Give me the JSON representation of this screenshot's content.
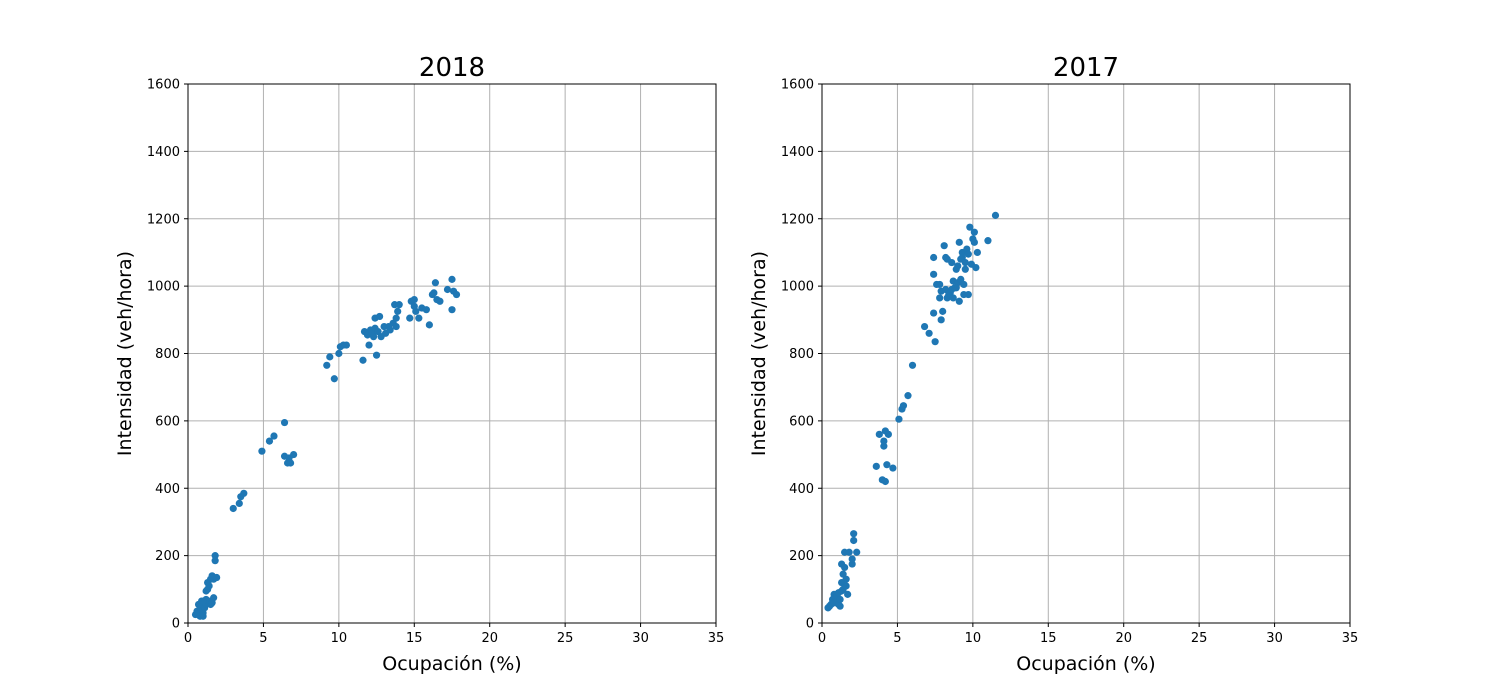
{
  "chart_data": [
    {
      "type": "scatter",
      "title": "2018",
      "xlabel": "Ocupación (%)",
      "ylabel": "Intensidad (veh/hora)",
      "xlim": [
        0,
        35
      ],
      "ylim": [
        0,
        1600
      ],
      "xticks": [
        0,
        5,
        10,
        15,
        20,
        25,
        30,
        35
      ],
      "yticks": [
        0,
        200,
        400,
        600,
        800,
        1000,
        1200,
        1400,
        1600
      ],
      "grid": true,
      "color": "#1f77b4",
      "points": [
        [
          0.5,
          25
        ],
        [
          0.6,
          35
        ],
        [
          0.7,
          30
        ],
        [
          0.8,
          20
        ],
        [
          0.8,
          45
        ],
        [
          0.9,
          65
        ],
        [
          0.9,
          40
        ],
        [
          1.0,
          50
        ],
        [
          1.0,
          30
        ],
        [
          1.0,
          20
        ],
        [
          1.1,
          60
        ],
        [
          1.1,
          45
        ],
        [
          1.2,
          70
        ],
        [
          1.2,
          55
        ],
        [
          1.2,
          95
        ],
        [
          1.3,
          100
        ],
        [
          1.3,
          120
        ],
        [
          1.4,
          110
        ],
        [
          1.4,
          65
        ],
        [
          1.5,
          130
        ],
        [
          1.5,
          55
        ],
        [
          1.6,
          60
        ],
        [
          1.6,
          140
        ],
        [
          1.7,
          130
        ],
        [
          1.7,
          75
        ],
        [
          1.8,
          185
        ],
        [
          1.8,
          200
        ],
        [
          1.9,
          135
        ],
        [
          0.7,
          55
        ],
        [
          1.0,
          65
        ],
        [
          3.0,
          340
        ],
        [
          3.4,
          355
        ],
        [
          3.5,
          375
        ],
        [
          3.7,
          385
        ],
        [
          4.9,
          510
        ],
        [
          5.4,
          540
        ],
        [
          5.7,
          555
        ],
        [
          6.4,
          595
        ],
        [
          6.4,
          495
        ],
        [
          6.6,
          475
        ],
        [
          6.7,
          490
        ],
        [
          6.8,
          475
        ],
        [
          7.0,
          500
        ],
        [
          9.2,
          765
        ],
        [
          9.4,
          790
        ],
        [
          9.7,
          725
        ],
        [
          10.0,
          800
        ],
        [
          10.1,
          820
        ],
        [
          10.3,
          825
        ],
        [
          10.5,
          825
        ],
        [
          11.6,
          780
        ],
        [
          11.7,
          865
        ],
        [
          11.9,
          855
        ],
        [
          12.0,
          825
        ],
        [
          12.1,
          870
        ],
        [
          12.2,
          860
        ],
        [
          12.3,
          850
        ],
        [
          12.4,
          875
        ],
        [
          12.4,
          905
        ],
        [
          12.5,
          795
        ],
        [
          12.6,
          865
        ],
        [
          12.7,
          910
        ],
        [
          12.8,
          850
        ],
        [
          13.0,
          880
        ],
        [
          13.1,
          860
        ],
        [
          13.3,
          880
        ],
        [
          13.4,
          870
        ],
        [
          13.6,
          890
        ],
        [
          13.7,
          945
        ],
        [
          13.8,
          905
        ],
        [
          13.9,
          925
        ],
        [
          14.0,
          945
        ],
        [
          14.7,
          905
        ],
        [
          14.8,
          955
        ],
        [
          15.0,
          960
        ],
        [
          15.1,
          925
        ],
        [
          15.3,
          905
        ],
        [
          15.5,
          935
        ],
        [
          15.8,
          930
        ],
        [
          16.0,
          885
        ],
        [
          16.2,
          975
        ],
        [
          16.3,
          980
        ],
        [
          16.4,
          1010
        ],
        [
          16.5,
          960
        ],
        [
          16.7,
          955
        ],
        [
          17.2,
          990
        ],
        [
          17.5,
          1020
        ],
        [
          17.5,
          930
        ],
        [
          17.6,
          985
        ],
        [
          17.8,
          975
        ],
        [
          13.8,
          880
        ],
        [
          15.0,
          940
        ]
      ]
    },
    {
      "type": "scatter",
      "title": "2017",
      "xlabel": "Ocupación (%)",
      "ylabel": "Intensidad (veh/hora)",
      "xlim": [
        0,
        35
      ],
      "ylim": [
        0,
        1600
      ],
      "xticks": [
        0,
        5,
        10,
        15,
        20,
        25,
        30,
        35
      ],
      "yticks": [
        0,
        200,
        400,
        600,
        800,
        1000,
        1200,
        1400,
        1600
      ],
      "grid": true,
      "color": "#1f77b4",
      "points": [
        [
          0.4,
          45
        ],
        [
          0.5,
          50
        ],
        [
          0.6,
          55
        ],
        [
          0.7,
          60
        ],
        [
          0.7,
          70
        ],
        [
          0.8,
          85
        ],
        [
          0.8,
          60
        ],
        [
          0.9,
          75
        ],
        [
          1.0,
          65
        ],
        [
          1.0,
          80
        ],
        [
          1.1,
          55
        ],
        [
          1.2,
          50
        ],
        [
          1.2,
          70
        ],
        [
          1.3,
          95
        ],
        [
          1.3,
          120
        ],
        [
          1.3,
          175
        ],
        [
          1.4,
          145
        ],
        [
          1.4,
          100
        ],
        [
          1.5,
          165
        ],
        [
          1.5,
          210
        ],
        [
          1.6,
          130
        ],
        [
          1.6,
          110
        ],
        [
          1.7,
          85
        ],
        [
          1.8,
          210
        ],
        [
          2.0,
          175
        ],
        [
          2.0,
          190
        ],
        [
          2.1,
          245
        ],
        [
          2.1,
          265
        ],
        [
          2.3,
          210
        ],
        [
          1.1,
          90
        ],
        [
          3.6,
          465
        ],
        [
          3.8,
          560
        ],
        [
          4.0,
          425
        ],
        [
          4.1,
          525
        ],
        [
          4.1,
          540
        ],
        [
          4.2,
          570
        ],
        [
          4.2,
          420
        ],
        [
          4.3,
          470
        ],
        [
          4.4,
          560
        ],
        [
          4.7,
          460
        ],
        [
          5.1,
          605
        ],
        [
          5.3,
          635
        ],
        [
          5.4,
          645
        ],
        [
          5.7,
          675
        ],
        [
          6.0,
          765
        ],
        [
          6.8,
          880
        ],
        [
          7.1,
          860
        ],
        [
          7.4,
          1035
        ],
        [
          7.4,
          920
        ],
        [
          7.5,
          835
        ],
        [
          7.6,
          1005
        ],
        [
          7.8,
          965
        ],
        [
          7.8,
          1005
        ],
        [
          7.9,
          900
        ],
        [
          7.9,
          985
        ],
        [
          8.0,
          925
        ],
        [
          8.1,
          1120
        ],
        [
          8.2,
          1085
        ],
        [
          8.2,
          990
        ],
        [
          8.3,
          1080
        ],
        [
          8.3,
          965
        ],
        [
          8.4,
          975
        ],
        [
          8.5,
          980
        ],
        [
          8.6,
          990
        ],
        [
          8.6,
          1070
        ],
        [
          8.7,
          965
        ],
        [
          8.7,
          1015
        ],
        [
          8.8,
          995
        ],
        [
          8.9,
          1050
        ],
        [
          9.0,
          1060
        ],
        [
          9.0,
          1010
        ],
        [
          9.1,
          1130
        ],
        [
          9.1,
          955
        ],
        [
          9.2,
          1080
        ],
        [
          9.2,
          1020
        ],
        [
          9.3,
          1100
        ],
        [
          9.3,
          1085
        ],
        [
          9.4,
          1005
        ],
        [
          9.4,
          975
        ],
        [
          9.5,
          1070
        ],
        [
          9.6,
          1110
        ],
        [
          9.7,
          1095
        ],
        [
          9.7,
          975
        ],
        [
          9.8,
          1175
        ],
        [
          9.9,
          1065
        ],
        [
          10.0,
          1140
        ],
        [
          10.1,
          1160
        ],
        [
          10.1,
          1130
        ],
        [
          10.2,
          1055
        ],
        [
          10.3,
          1100
        ],
        [
          11.0,
          1135
        ],
        [
          11.5,
          1210
        ],
        [
          7.4,
          1085
        ],
        [
          9.5,
          1050
        ],
        [
          8.9,
          995
        ]
      ]
    }
  ]
}
